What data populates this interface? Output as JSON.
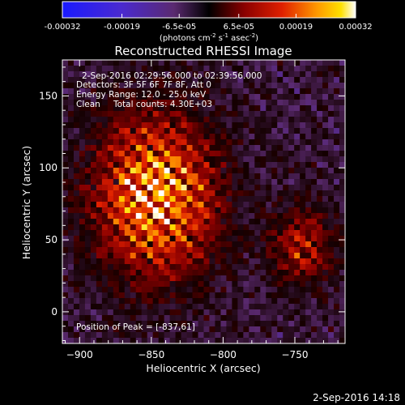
{
  "colorbar": {
    "ticks": [
      "-0.00032",
      "-0.00019",
      "-6.5e-05",
      "6.5e-05",
      "0.00019",
      "0.00032"
    ],
    "tick_values": [
      -0.00032,
      -0.00019,
      -6.5e-05,
      6.5e-05,
      0.00019,
      0.00032
    ],
    "units_main": "(photons cm",
    "units_exp1": "-2",
    "units_s": " s",
    "units_exp2": "-1",
    "units_asec": " asec",
    "units_exp3": "-2",
    "units_close": ")",
    "colormap": "red-yellow-white with blue-purple negatives"
  },
  "chart_data": {
    "type": "heatmap",
    "title": "Reconstructed RHESSI Image",
    "xlabel": "Heliocentric X (arcsec)",
    "ylabel": "Heliocentric Y (arcsec)",
    "xlim": [
      -912,
      -715
    ],
    "ylim": [
      -22,
      175
    ],
    "xticks": [
      -900,
      -850,
      -800,
      -750
    ],
    "yticks": [
      0,
      50,
      100,
      150
    ],
    "time_range": "2-Sep-2016 02:29:56.000 to 02:39:56.000",
    "detectors": "Detectors: 3F 5F 6F 7F 8F, Att 0",
    "energy_range": "Energy Range: 12.0 - 25.0 keV",
    "method": "Clean",
    "total_counts": "Total counts: 4.30E+03",
    "peak_label": "Position of Peak = [-837,61]",
    "peak": [
      -837,
      61
    ],
    "grid": false
  },
  "footer": {
    "timestamp": "2-Sep-2016 14:18"
  }
}
